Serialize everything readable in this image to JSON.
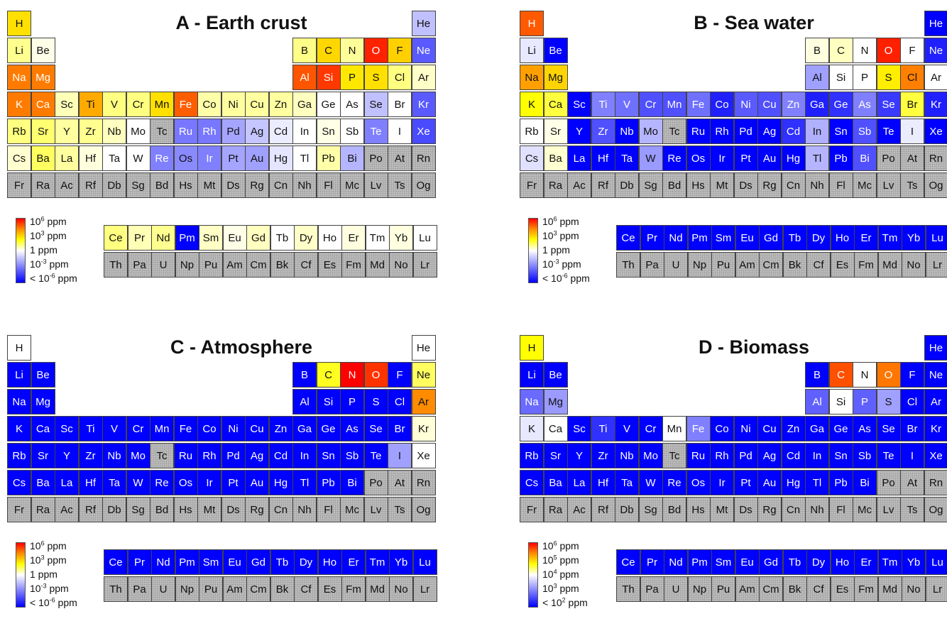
{
  "chart_data": [
    {
      "type": "heatmap",
      "title": "A - Earth crust",
      "legend": {
        "labels": [
          "10^6 ppm",
          "10^3 ppm",
          "1 ppm",
          "10^-3 ppm",
          "< 10^-6 ppm"
        ],
        "colors": [
          "#ff0000",
          "#ffff00",
          "#ffffff",
          "#0000ff"
        ]
      },
      "cells": {
        "H": "#ffe000",
        "He": "#c0c0ff",
        "Li": "#ffff90",
        "Be": "#ffffe8",
        "B": "#ffff88",
        "C": "#ffd700",
        "N": "#ffff9a",
        "O": "#ff2200",
        "F": "#ffd000",
        "Ne": "#5a5aff",
        "Na": "#ff7b00",
        "Mg": "#ff7b00",
        "Al": "#ff5500",
        "Si": "#ff3800",
        "P": "#ffe800",
        "S": "#ffe000",
        "Cl": "#ffff80",
        "Ar": "#ffffc8",
        "K": "#ff7b00",
        "Ca": "#ff7b00",
        "Sc": "#ffffb8",
        "Ti": "#ffaa00",
        "V": "#ffff80",
        "Cr": "#ffff80",
        "Mn": "#ffe000",
        "Fe": "#ff5e00",
        "Co": "#ffffa8",
        "Ni": "#ffffa0",
        "Cu": "#ffffa0",
        "Zn": "#ffffa0",
        "Ga": "#ffffc0",
        "Ge": "#ffffff",
        "As": "#ffffff",
        "Se": "#c0c0ff",
        "Br": "#ffffff",
        "Kr": "#5a5aff",
        "Rb": "#ffff80",
        "Sr": "#ffff70",
        "Y": "#ffffa0",
        "Zr": "#ffff90",
        "Nb": "#ffffc0",
        "Mo": "#ffffff",
        "Tc": "gray",
        "Ru": "#7777ff",
        "Rh": "#7777ff",
        "Pd": "#a5a5ff",
        "Ag": "#c5c5ff",
        "Cd": "#ececff",
        "In": "#ffffff",
        "Sn": "#ffffe5",
        "Sb": "#ffffff",
        "Te": "#8080ff",
        "I": "#ffffff",
        "Xe": "#4a4aff",
        "Cs": "#ffffd0",
        "Ba": "#ffff60",
        "La": "#ffffa0",
        "Hf": "#ffffdd",
        "Ta": "#ffffff",
        "W": "#ffffff",
        "Re": "#8080ff",
        "Os": "#8a8aff",
        "Ir": "#8080ff",
        "Pt": "#a5a5ff",
        "Au": "#a0a0ff",
        "Hg": "#e5e5ff",
        "Tl": "#ffffff",
        "Pb": "#ffffa8",
        "Bi": "#b5b5ff",
        "Po": "gray",
        "At": "gray",
        "Rn": "gray",
        "Fr": "gray",
        "Ra": "gray",
        "Ac": "gray",
        "Rf": "gray",
        "Db": "gray",
        "Sg": "gray",
        "Bd": "gray",
        "Hs": "gray",
        "Mt": "gray",
        "Ds": "gray",
        "Rg": "gray",
        "Cn": "gray",
        "Nh": "gray",
        "Fl": "gray",
        "Mc": "gray",
        "Lv": "gray",
        "Ts": "gray",
        "Og": "gray",
        "Ce": "#ffff80",
        "Pr": "#ffffb5",
        "Nd": "#ffff90",
        "Pm": "#0000ff",
        "Sm": "#ffffc5",
        "Eu": "#ffffe8",
        "Gd": "#ffffc0",
        "Tb": "#ffffff",
        "Dy": "#ffffc8",
        "Ho": "#ffffff",
        "Er": "#ffffe0",
        "Tm": "#ffffff",
        "Yb": "#ffffe0",
        "Lu": "#ffffff",
        "Th": "gray",
        "Pa": "gray",
        "U": "gray",
        "Np": "gray",
        "Pu": "gray",
        "Am": "gray",
        "Cm": "gray",
        "Bk": "gray",
        "Cf": "gray",
        "Es": "gray",
        "Fm": "gray",
        "Md": "gray",
        "No": "gray",
        "Lr": "gray"
      }
    },
    {
      "type": "heatmap",
      "title": "B - Sea water",
      "legend": {
        "labels": [
          "10^6 ppm",
          "10^3 ppm",
          "1 ppm",
          "10^-3 ppm",
          "< 10^-6 ppm"
        ],
        "colors": [
          "#ff0000",
          "#ffff00",
          "#ffffff",
          "#0000ff"
        ]
      },
      "cells": {
        "H": "#ff5a00",
        "He": "#0000ff",
        "Li": "#e8e8ff",
        "Be": "#0000ff",
        "B": "#ffffe0",
        "C": "#ffffc0",
        "N": "#ffffff",
        "O": "#ff2000",
        "F": "#ffffff",
        "Ne": "#2020ff",
        "Na": "#ffa000",
        "Mg": "#ffd400",
        "Al": "#a0a0ff",
        "Si": "#ffffff",
        "P": "#ffffff",
        "S": "#ffee00",
        "Cl": "#ff8000",
        "Ar": "#ffffff",
        "K": "#ffff00",
        "Ca": "#ffff40",
        "Sc": "#0000ff",
        "Ti": "#8080ff",
        "V": "#7070ff",
        "Cr": "#5050ff",
        "Mn": "#5050ff",
        "Fe": "#7070ff",
        "Co": "#2020ff",
        "Ni": "#5a5aff",
        "Cu": "#5050ff",
        "Zn": "#8080ff",
        "Ga": "#2020ff",
        "Ge": "#3030ff",
        "As": "#8080ff",
        "Se": "#3a3aff",
        "Br": "#ffff40",
        "Kr": "#2020ff",
        "Rb": "#ffffff",
        "Sr": "#ffffe8",
        "Y": "#0000ff",
        "Zr": "#5050ff",
        "Nb": "#0000ff",
        "Mo": "#b5b5ff",
        "Tc": "gray",
        "Ru": "#0000ff",
        "Rh": "#0000ff",
        "Pd": "#0000ff",
        "Ag": "#0000ff",
        "Cd": "#3030ff",
        "In": "#b0b0ff",
        "Sn": "#0000ff",
        "Sb": "#5050ff",
        "Te": "#0000ff",
        "I": "#ececff",
        "Xe": "#0000ff",
        "Cs": "#e0e0ff",
        "Ba": "#ffffd0",
        "La": "#0000ff",
        "Hf": "#0000ff",
        "Ta": "#0000ff",
        "W": "#9a9aff",
        "Re": "#0000ff",
        "Os": "#0000ff",
        "Ir": "#0000ff",
        "Pt": "#0000ff",
        "Au": "#0000ff",
        "Hg": "#0000ff",
        "Tl": "#b5b5ff",
        "Pb": "#0000ff",
        "Bi": "#5050ff",
        "Po": "gray",
        "At": "gray",
        "Rn": "gray",
        "Fr": "gray",
        "Ra": "gray",
        "Ac": "gray",
        "Rf": "gray",
        "Db": "gray",
        "Sg": "gray",
        "Bd": "gray",
        "Hs": "gray",
        "Mt": "gray",
        "Ds": "gray",
        "Rg": "gray",
        "Cn": "gray",
        "Nh": "gray",
        "Fl": "gray",
        "Mc": "gray",
        "Lv": "gray",
        "Ts": "gray",
        "Og": "gray",
        "Ce": "#0000ff",
        "Pr": "#0000ff",
        "Nd": "#0000ff",
        "Pm": "#0000ff",
        "Sm": "#0000ff",
        "Eu": "#0000ff",
        "Gd": "#0000ff",
        "Tb": "#0000ff",
        "Dy": "#0000ff",
        "Ho": "#0000ff",
        "Er": "#0000ff",
        "Tm": "#0000ff",
        "Yb": "#0000ff",
        "Lu": "#0000ff",
        "Th": "gray",
        "Pa": "gray",
        "U": "gray",
        "Np": "gray",
        "Pu": "gray",
        "Am": "gray",
        "Cm": "gray",
        "Bk": "gray",
        "Cf": "gray",
        "Es": "gray",
        "Fm": "gray",
        "Md": "gray",
        "No": "gray",
        "Lr": "gray"
      }
    },
    {
      "type": "heatmap",
      "title": "C - Atmosphere",
      "legend": {
        "labels": [
          "10^6 ppm",
          "10^3 ppm",
          "1 ppm",
          "10^-3 ppm",
          "< 10^-6 ppm"
        ],
        "colors": [
          "#ff0000",
          "#ffff00",
          "#ffffff",
          "#0000ff"
        ]
      },
      "cells": {
        "H": "#ffffff",
        "He": "#ffffff",
        "Li": "#0000ff",
        "Be": "#0000ff",
        "B": "#0000ff",
        "C": "#ffff20",
        "N": "#ff0000",
        "O": "#ff3300",
        "F": "#0000ff",
        "Ne": "#ffff60",
        "Na": "#0000ff",
        "Mg": "#0000ff",
        "Al": "#0000ff",
        "Si": "#0000ff",
        "P": "#0000ff",
        "S": "#0000ff",
        "Cl": "#0000ff",
        "Ar": "#ff8c00",
        "K": "#0000ff",
        "Ca": "#0000ff",
        "Sc": "#0000ff",
        "Ti": "#0000ff",
        "V": "#0000ff",
        "Cr": "#0000ff",
        "Mn": "#0000ff",
        "Fe": "#0000ff",
        "Co": "#0000ff",
        "Ni": "#0000ff",
        "Cu": "#0000ff",
        "Zn": "#0000ff",
        "Ga": "#0000ff",
        "Ge": "#0000ff",
        "As": "#0000ff",
        "Se": "#0000ff",
        "Br": "#0000ff",
        "Kr": "#ffffd8",
        "Rb": "#0000ff",
        "Sr": "#0000ff",
        "Y": "#0000ff",
        "Zr": "#0000ff",
        "Nb": "#0000ff",
        "Mo": "#0000ff",
        "Tc": "gray",
        "Ru": "#0000ff",
        "Rh": "#0000ff",
        "Pd": "#0000ff",
        "Ag": "#0000ff",
        "Cd": "#0000ff",
        "In": "#0000ff",
        "Sn": "#0000ff",
        "Sb": "#0000ff",
        "Te": "#0000ff",
        "I": "#a0a0ff",
        "Xe": "#ffffff",
        "Cs": "#0000ff",
        "Ba": "#0000ff",
        "La": "#0000ff",
        "Hf": "#0000ff",
        "Ta": "#0000ff",
        "W": "#0000ff",
        "Re": "#0000ff",
        "Os": "#0000ff",
        "Ir": "#0000ff",
        "Pt": "#0000ff",
        "Au": "#0000ff",
        "Hg": "#0000ff",
        "Tl": "#0000ff",
        "Pb": "#0000ff",
        "Bi": "#0000ff",
        "Po": "gray",
        "At": "gray",
        "Rn": "gray",
        "Fr": "gray",
        "Ra": "gray",
        "Ac": "gray",
        "Rf": "gray",
        "Db": "gray",
        "Sg": "gray",
        "Bd": "gray",
        "Hs": "gray",
        "Mt": "gray",
        "Ds": "gray",
        "Rg": "gray",
        "Cn": "gray",
        "Nh": "gray",
        "Fl": "gray",
        "Mc": "gray",
        "Lv": "gray",
        "Ts": "gray",
        "Og": "gray",
        "Ce": "#0000ff",
        "Pr": "#0000ff",
        "Nd": "#0000ff",
        "Pm": "#0000ff",
        "Sm": "#0000ff",
        "Eu": "#0000ff",
        "Gd": "#0000ff",
        "Tb": "#0000ff",
        "Dy": "#0000ff",
        "Ho": "#0000ff",
        "Er": "#0000ff",
        "Tm": "#0000ff",
        "Yb": "#0000ff",
        "Lu": "#0000ff",
        "Th": "gray",
        "Pa": "gray",
        "U": "gray",
        "Np": "gray",
        "Pu": "gray",
        "Am": "gray",
        "Cm": "gray",
        "Bk": "gray",
        "Cf": "gray",
        "Es": "gray",
        "Fm": "gray",
        "Md": "gray",
        "No": "gray",
        "Lr": "gray"
      }
    },
    {
      "type": "heatmap",
      "title": "D - Biomass",
      "legend": {
        "labels": [
          "10^6 ppm",
          "10^5 ppm",
          "10^4 ppm",
          "10^3 ppm",
          "< 10^2 ppm"
        ],
        "colors": [
          "#ff0000",
          "#ffff00",
          "#ffffff",
          "#0000ff"
        ]
      },
      "cells": {
        "H": "#ffff00",
        "He": "#0000ff",
        "Li": "#0000ff",
        "Be": "#0000ff",
        "B": "#0000ff",
        "C": "#ff5000",
        "N": "#ffffff",
        "O": "#ff7700",
        "F": "#0000ff",
        "Ne": "#0000ff",
        "Na": "#6a6aff",
        "Mg": "#9a9aff",
        "Al": "#6060ff",
        "Si": "#ffffff",
        "P": "#6060ff",
        "S": "#a0a0ff",
        "Cl": "#0000ff",
        "Ar": "#0000ff",
        "K": "#e8e8ff",
        "Ca": "#ffffff",
        "Sc": "#0000ff",
        "Ti": "#3030ff",
        "V": "#0000ff",
        "Cr": "#0000ff",
        "Mn": "#ffffff",
        "Fe": "#8080ff",
        "Co": "#0000ff",
        "Ni": "#0000ff",
        "Cu": "#0000ff",
        "Zn": "#0000ff",
        "Ga": "#0000ff",
        "Ge": "#0000ff",
        "As": "#0000ff",
        "Se": "#0000ff",
        "Br": "#0000ff",
        "Kr": "#0000ff",
        "Rb": "#0000ff",
        "Sr": "#0000ff",
        "Y": "#0000ff",
        "Zr": "#0000ff",
        "Nb": "#0000ff",
        "Mo": "#0000ff",
        "Tc": "gray",
        "Ru": "#0000ff",
        "Rh": "#0000ff",
        "Pd": "#0000ff",
        "Ag": "#0000ff",
        "Cd": "#0000ff",
        "In": "#0000ff",
        "Sn": "#0000ff",
        "Sb": "#0000ff",
        "Te": "#0000ff",
        "I": "#0000ff",
        "Xe": "#0000ff",
        "Cs": "#0000ff",
        "Ba": "#0000ff",
        "La": "#0000ff",
        "Hf": "#0000ff",
        "Ta": "#0000ff",
        "W": "#0000ff",
        "Re": "#0000ff",
        "Os": "#0000ff",
        "Ir": "#0000ff",
        "Pt": "#0000ff",
        "Au": "#0000ff",
        "Hg": "#0000ff",
        "Tl": "#0000ff",
        "Pb": "#0000ff",
        "Bi": "#0000ff",
        "Po": "gray",
        "At": "gray",
        "Rn": "gray",
        "Fr": "gray",
        "Ra": "gray",
        "Ac": "gray",
        "Rf": "gray",
        "Db": "gray",
        "Sg": "gray",
        "Bd": "gray",
        "Hs": "gray",
        "Mt": "gray",
        "Ds": "gray",
        "Rg": "gray",
        "Cn": "gray",
        "Nh": "gray",
        "Fl": "gray",
        "Mc": "gray",
        "Lv": "gray",
        "Ts": "gray",
        "Og": "gray",
        "Ce": "#0000ff",
        "Pr": "#0000ff",
        "Nd": "#0000ff",
        "Pm": "#0000ff",
        "Sm": "#0000ff",
        "Eu": "#0000ff",
        "Gd": "#0000ff",
        "Tb": "#0000ff",
        "Dy": "#0000ff",
        "Ho": "#0000ff",
        "Er": "#0000ff",
        "Tm": "#0000ff",
        "Yb": "#0000ff",
        "Lu": "#0000ff",
        "Th": "gray",
        "Pa": "gray",
        "U": "gray",
        "Np": "gray",
        "Pu": "gray",
        "Am": "gray",
        "Cm": "gray",
        "Bk": "gray",
        "Cf": "gray",
        "Es": "gray",
        "Fm": "gray",
        "Md": "gray",
        "No": "gray",
        "Lr": "gray"
      }
    }
  ]
}
